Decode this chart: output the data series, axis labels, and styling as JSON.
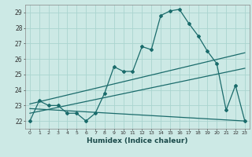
{
  "title": "",
  "xlabel": "Humidex (Indice chaleur)",
  "xlim": [
    -0.5,
    23.5
  ],
  "ylim": [
    21.5,
    29.5
  ],
  "yticks": [
    22,
    23,
    24,
    25,
    26,
    27,
    28,
    29
  ],
  "background_color": "#cce9e5",
  "grid_color": "#aad4cf",
  "line_color": "#1a6b6b",
  "line1_x": [
    0,
    1,
    2,
    3,
    4,
    5,
    6,
    7,
    8,
    9,
    10,
    11,
    12,
    13,
    14,
    15,
    16,
    17,
    18,
    19,
    20,
    21,
    22,
    23
  ],
  "line1_y": [
    22.0,
    23.3,
    23.0,
    23.0,
    22.5,
    22.5,
    22.0,
    22.5,
    23.8,
    25.5,
    25.2,
    25.2,
    26.8,
    26.6,
    28.8,
    29.1,
    29.2,
    28.3,
    27.5,
    26.5,
    25.7,
    22.7,
    24.3,
    22.0
  ],
  "trend1_x": [
    0,
    23
  ],
  "trend1_y": [
    23.1,
    26.4
  ],
  "trend2_x": [
    0,
    23
  ],
  "trend2_y": [
    22.5,
    25.4
  ],
  "trend3_x": [
    0,
    23
  ],
  "trend3_y": [
    22.8,
    22.0
  ]
}
